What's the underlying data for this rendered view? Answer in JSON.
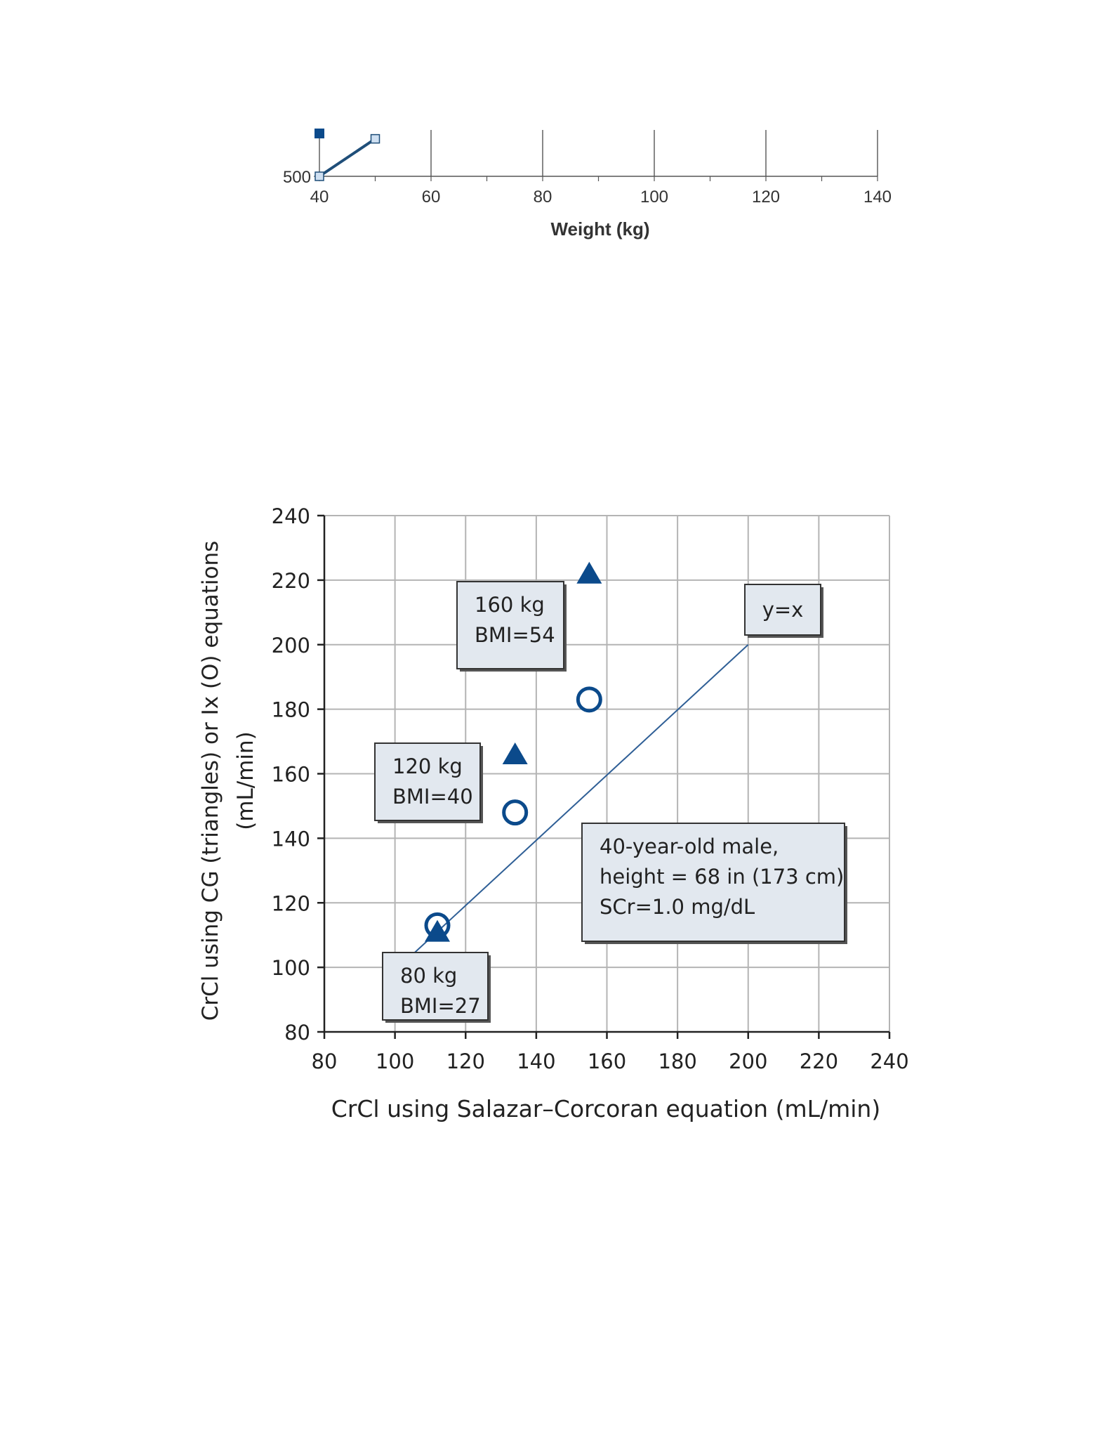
{
  "chart_data": [
    {
      "type": "line",
      "partial": true,
      "xlabel": "Weight (kg)",
      "xlim": [
        40,
        140
      ],
      "x_ticks": [
        "40",
        "60",
        "80",
        "100",
        "120",
        "140"
      ],
      "y_ticks_visible": [
        "500"
      ],
      "grid": "vertical",
      "series": [
        {
          "marker": "square-open",
          "color": "#1f4e79",
          "points": [
            [
              40,
              500
            ],
            [
              50,
              570
            ]
          ]
        },
        {
          "marker": "square-filled",
          "color": "#0b4a8b",
          "points": [
            [
              40,
              580
            ]
          ]
        }
      ]
    },
    {
      "type": "scatter",
      "title": "",
      "xlabel": "CrCl using Salazar–Corcoran equation (mL/min)",
      "ylabel_line1": "CrCl using CG (triangles) or Ix (O) equations",
      "ylabel_line2": "(mL/min)",
      "xlim": [
        80,
        240
      ],
      "ylim": [
        80,
        240
      ],
      "x_ticks": [
        "80",
        "100",
        "120",
        "140",
        "160",
        "180",
        "200",
        "220",
        "240"
      ],
      "y_ticks": [
        "80",
        "100",
        "120",
        "140",
        "160",
        "180",
        "200",
        "220",
        "240"
      ],
      "grid": true,
      "reference_line": {
        "from": [
          105,
          104
        ],
        "to": [
          200,
          200
        ]
      },
      "series": [
        {
          "marker": "triangle",
          "color": "#0b4a8b",
          "points": [
            [
              112,
              111
            ],
            [
              134,
              166
            ],
            [
              155,
              222
            ]
          ]
        },
        {
          "marker": "circle-open",
          "color": "#0b4a8b",
          "points": [
            [
              112,
              113
            ],
            [
              134,
              148
            ],
            [
              155,
              183
            ]
          ]
        }
      ],
      "annotations": [
        {
          "lines": [
            "80 kg",
            "BMI=27"
          ]
        },
        {
          "lines": [
            "120 kg",
            "BMI=40"
          ]
        },
        {
          "lines": [
            "160 kg",
            "BMI=54"
          ]
        },
        {
          "lines": [
            "y=x"
          ]
        },
        {
          "lines": [
            "40-year-old male,",
            "height = 68 in (173 cm)",
            "SCr=1.0 mg/dL"
          ]
        }
      ]
    }
  ]
}
